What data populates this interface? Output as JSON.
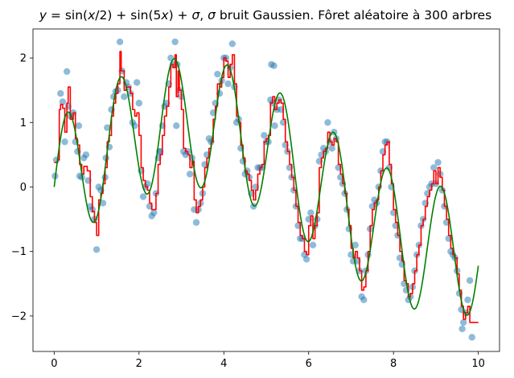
{
  "chart_data": {
    "type": "scatter",
    "title": "y = sin(x/2) + sin(5x) + σ, σ bruit Gaussien. Fôret aléatoire à  300 arbres",
    "title_parts": {
      "y": "y",
      "eq": " = sin(",
      "x1": "x",
      "half": "/2) + sin(5",
      "x2": "x",
      "plus": ") + ",
      "s1": "σ",
      "comma": ", ",
      "s2": "σ",
      "rest": " bruit Gaussien. Fôret aléatoire à  300 arbres"
    },
    "xlim": [
      -0.5,
      10.5
    ],
    "ylim": [
      -2.55,
      2.45
    ],
    "xticks": [
      0,
      2,
      4,
      6,
      8,
      10
    ],
    "yticks": [
      -2,
      -1,
      0,
      1,
      2
    ],
    "xtick_labels": [
      "0",
      "2",
      "4",
      "6",
      "8",
      "10"
    ],
    "ytick_labels": [
      "−2",
      "−1",
      "0",
      "1",
      "2"
    ],
    "colors": {
      "points": "#1f77b4",
      "forest": "#ff0000",
      "true_function": "#008000"
    },
    "points": [
      [
        0.02,
        0.17
      ],
      [
        0.05,
        0.42
      ],
      [
        0.15,
        1.45
      ],
      [
        0.2,
        1.32
      ],
      [
        0.25,
        0.7
      ],
      [
        0.3,
        1.79
      ],
      [
        0.33,
        1.25
      ],
      [
        0.38,
        1.1
      ],
      [
        0.45,
        1.15
      ],
      [
        0.5,
        0.7
      ],
      [
        0.55,
        0.55
      ],
      [
        0.58,
        0.95
      ],
      [
        0.6,
        0.17
      ],
      [
        0.65,
        0.15
      ],
      [
        0.7,
        0.45
      ],
      [
        0.75,
        0.5
      ],
      [
        0.8,
        0.1
      ],
      [
        0.85,
        -0.3
      ],
      [
        0.9,
        -0.35
      ],
      [
        0.95,
        -0.5
      ],
      [
        1.0,
        -0.97
      ],
      [
        1.05,
        0.0
      ],
      [
        1.1,
        -0.05
      ],
      [
        1.15,
        -0.25
      ],
      [
        1.2,
        0.15
      ],
      [
        1.22,
        0.45
      ],
      [
        1.25,
        0.92
      ],
      [
        1.3,
        0.62
      ],
      [
        1.35,
        1.2
      ],
      [
        1.4,
        1.4
      ],
      [
        1.45,
        1.48
      ],
      [
        1.5,
        1.5
      ],
      [
        1.55,
        2.25
      ],
      [
        1.6,
        1.8
      ],
      [
        1.65,
        1.4
      ],
      [
        1.7,
        1.62
      ],
      [
        1.75,
        1.55
      ],
      [
        1.8,
        1.45
      ],
      [
        1.85,
        1.0
      ],
      [
        1.9,
        0.95
      ],
      [
        1.95,
        1.62
      ],
      [
        2.0,
        1.3
      ],
      [
        2.05,
        0.25
      ],
      [
        2.1,
        -0.15
      ],
      [
        2.15,
        0.0
      ],
      [
        2.2,
        0.05
      ],
      [
        2.25,
        -0.3
      ],
      [
        2.3,
        -0.45
      ],
      [
        2.35,
        -0.4
      ],
      [
        2.4,
        -0.1
      ],
      [
        2.45,
        0.45
      ],
      [
        2.48,
        0.55
      ],
      [
        2.5,
        0.55
      ],
      [
        2.55,
        0.95
      ],
      [
        2.6,
        1.25
      ],
      [
        2.65,
        1.3
      ],
      [
        2.7,
        1.6
      ],
      [
        2.75,
        2.0
      ],
      [
        2.8,
        1.9
      ],
      [
        2.85,
        2.25
      ],
      [
        2.88,
        0.95
      ],
      [
        2.9,
        1.9
      ],
      [
        2.95,
        1.5
      ],
      [
        3.0,
        1.4
      ],
      [
        3.05,
        0.55
      ],
      [
        3.1,
        0.5
      ],
      [
        3.15,
        0.55
      ],
      [
        3.2,
        0.2
      ],
      [
        3.25,
        0.45
      ],
      [
        3.3,
        -0.35
      ],
      [
        3.35,
        -0.55
      ],
      [
        3.4,
        -0.35
      ],
      [
        3.45,
        -0.25
      ],
      [
        3.5,
        -0.1
      ],
      [
        3.55,
        0.35
      ],
      [
        3.6,
        0.5
      ],
      [
        3.65,
        0.75
      ],
      [
        3.7,
        0.7
      ],
      [
        3.75,
        1.15
      ],
      [
        3.8,
        1.3
      ],
      [
        3.85,
        1.75
      ],
      [
        3.9,
        1.45
      ],
      [
        3.95,
        1.65
      ],
      [
        4.0,
        2.0
      ],
      [
        4.05,
        2.0
      ],
      [
        4.1,
        1.6
      ],
      [
        4.15,
        1.85
      ],
      [
        4.2,
        2.22
      ],
      [
        4.25,
        1.55
      ],
      [
        4.3,
        1.0
      ],
      [
        4.35,
        1.05
      ],
      [
        4.4,
        0.6
      ],
      [
        4.45,
        0.4
      ],
      [
        4.5,
        0.2
      ],
      [
        4.55,
        0.25
      ],
      [
        4.6,
        0.15
      ],
      [
        4.65,
        -0.1
      ],
      [
        4.7,
        -0.3
      ],
      [
        4.75,
        0.0
      ],
      [
        4.8,
        0.3
      ],
      [
        4.85,
        0.3
      ],
      [
        4.9,
        0.3
      ],
      [
        4.95,
        0.8
      ],
      [
        5.0,
        0.7
      ],
      [
        5.05,
        0.7
      ],
      [
        5.1,
        1.35
      ],
      [
        5.12,
        1.9
      ],
      [
        5.15,
        1.3
      ],
      [
        5.18,
        1.88
      ],
      [
        5.2,
        0.95
      ],
      [
        5.25,
        1.2
      ],
      [
        5.3,
        1.35
      ],
      [
        5.35,
        1.2
      ],
      [
        5.4,
        1.0
      ],
      [
        5.45,
        0.65
      ],
      [
        5.5,
        0.55
      ],
      [
        5.55,
        0.3
      ],
      [
        5.6,
        0.15
      ],
      [
        5.65,
        -0.05
      ],
      [
        5.7,
        -0.3
      ],
      [
        5.75,
        -0.6
      ],
      [
        5.8,
        -0.8
      ],
      [
        5.85,
        -0.8
      ],
      [
        5.9,
        -1.05
      ],
      [
        5.95,
        -1.12
      ],
      [
        6.0,
        -0.5
      ],
      [
        6.05,
        -0.4
      ],
      [
        6.1,
        -0.9
      ],
      [
        6.15,
        -0.6
      ],
      [
        6.2,
        -0.5
      ],
      [
        6.25,
        0.4
      ],
      [
        6.3,
        0.5
      ],
      [
        6.35,
        0.6
      ],
      [
        6.4,
        0.55
      ],
      [
        6.45,
        1.0
      ],
      [
        6.5,
        0.7
      ],
      [
        6.55,
        0.6
      ],
      [
        6.6,
        0.85
      ],
      [
        6.65,
        0.75
      ],
      [
        6.7,
        0.3
      ],
      [
        6.75,
        0.15
      ],
      [
        6.8,
        0.05
      ],
      [
        6.85,
        -0.1
      ],
      [
        6.9,
        -0.35
      ],
      [
        6.95,
        -0.65
      ],
      [
        7.0,
        -1.05
      ],
      [
        7.05,
        -1.15
      ],
      [
        7.1,
        -0.9
      ],
      [
        7.15,
        -1.15
      ],
      [
        7.2,
        -1.3
      ],
      [
        7.25,
        -1.7
      ],
      [
        7.3,
        -1.75
      ],
      [
        7.35,
        -1.3
      ],
      [
        7.4,
        -1.05
      ],
      [
        7.45,
        -0.65
      ],
      [
        7.5,
        -0.3
      ],
      [
        7.55,
        -0.2
      ],
      [
        7.6,
        -0.25
      ],
      [
        7.65,
        0.0
      ],
      [
        7.7,
        0.25
      ],
      [
        7.75,
        0.55
      ],
      [
        7.8,
        0.7
      ],
      [
        7.85,
        0.7
      ],
      [
        7.9,
        0.3
      ],
      [
        7.95,
        0.0
      ],
      [
        8.0,
        -0.4
      ],
      [
        8.05,
        -0.6
      ],
      [
        8.1,
        -0.75
      ],
      [
        8.15,
        -1.1
      ],
      [
        8.2,
        -1.2
      ],
      [
        8.25,
        -1.5
      ],
      [
        8.3,
        -1.6
      ],
      [
        8.35,
        -1.75
      ],
      [
        8.4,
        -1.7
      ],
      [
        8.45,
        -1.55
      ],
      [
        8.5,
        -1.3
      ],
      [
        8.55,
        -1.05
      ],
      [
        8.6,
        -0.9
      ],
      [
        8.65,
        -0.6
      ],
      [
        8.7,
        -0.5
      ],
      [
        8.75,
        -0.25
      ],
      [
        8.8,
        -0.1
      ],
      [
        8.85,
        0.0
      ],
      [
        8.9,
        0.05
      ],
      [
        8.95,
        0.3
      ],
      [
        9.0,
        0.05
      ],
      [
        9.05,
        0.38
      ],
      [
        9.1,
        0.2
      ],
      [
        9.15,
        -0.05
      ],
      [
        9.2,
        -0.3
      ],
      [
        9.25,
        -0.55
      ],
      [
        9.3,
        -0.8
      ],
      [
        9.35,
        -1.0
      ],
      [
        9.4,
        -1.05
      ],
      [
        9.45,
        -1.1
      ],
      [
        9.5,
        -1.3
      ],
      [
        9.55,
        -1.65
      ],
      [
        9.6,
        -1.9
      ],
      [
        9.62,
        -2.2
      ],
      [
        9.65,
        -2.1
      ],
      [
        9.7,
        -1.95
      ],
      [
        9.75,
        -1.75
      ],
      [
        9.8,
        -1.45
      ],
      [
        9.85,
        -2.33
      ]
    ],
    "forest_line": [
      [
        0.0,
        0.38
      ],
      [
        0.08,
        0.42
      ],
      [
        0.12,
        1.2
      ],
      [
        0.15,
        1.28
      ],
      [
        0.2,
        1.22
      ],
      [
        0.25,
        0.85
      ],
      [
        0.3,
        1.3
      ],
      [
        0.33,
        1.55
      ],
      [
        0.38,
        1.05
      ],
      [
        0.45,
        1.15
      ],
      [
        0.5,
        0.75
      ],
      [
        0.55,
        0.65
      ],
      [
        0.6,
        0.35
      ],
      [
        0.65,
        0.2
      ],
      [
        0.7,
        0.32
      ],
      [
        0.78,
        0.25
      ],
      [
        0.85,
        -0.15
      ],
      [
        0.9,
        -0.38
      ],
      [
        0.95,
        -0.55
      ],
      [
        1.0,
        -0.75
      ],
      [
        1.05,
        -0.2
      ],
      [
        1.1,
        -0.1
      ],
      [
        1.15,
        0.05
      ],
      [
        1.2,
        0.3
      ],
      [
        1.25,
        0.7
      ],
      [
        1.3,
        0.8
      ],
      [
        1.35,
        1.1
      ],
      [
        1.4,
        1.3
      ],
      [
        1.45,
        1.45
      ],
      [
        1.5,
        1.6
      ],
      [
        1.55,
        2.1
      ],
      [
        1.58,
        1.8
      ],
      [
        1.65,
        1.5
      ],
      [
        1.7,
        1.55
      ],
      [
        1.8,
        1.45
      ],
      [
        1.85,
        1.2
      ],
      [
        1.9,
        1.1
      ],
      [
        1.95,
        1.15
      ],
      [
        2.0,
        0.8
      ],
      [
        2.05,
        0.3
      ],
      [
        2.1,
        0.1
      ],
      [
        2.15,
        0.0
      ],
      [
        2.2,
        -0.05
      ],
      [
        2.25,
        -0.25
      ],
      [
        2.3,
        -0.35
      ],
      [
        2.4,
        -0.1
      ],
      [
        2.45,
        0.35
      ],
      [
        2.5,
        0.5
      ],
      [
        2.55,
        0.8
      ],
      [
        2.6,
        1.1
      ],
      [
        2.65,
        1.25
      ],
      [
        2.7,
        1.55
      ],
      [
        2.75,
        1.9
      ],
      [
        2.8,
        1.85
      ],
      [
        2.85,
        2.05
      ],
      [
        2.88,
        1.4
      ],
      [
        2.92,
        1.8
      ],
      [
        2.95,
        1.5
      ],
      [
        3.0,
        1.2
      ],
      [
        3.05,
        0.6
      ],
      [
        3.1,
        0.55
      ],
      [
        3.15,
        0.5
      ],
      [
        3.2,
        0.3
      ],
      [
        3.25,
        0.4
      ],
      [
        3.3,
        -0.2
      ],
      [
        3.35,
        -0.4
      ],
      [
        3.4,
        -0.3
      ],
      [
        3.45,
        -0.2
      ],
      [
        3.5,
        0.0
      ],
      [
        3.55,
        0.3
      ],
      [
        3.6,
        0.45
      ],
      [
        3.65,
        0.6
      ],
      [
        3.7,
        0.7
      ],
      [
        3.75,
        1.05
      ],
      [
        3.8,
        1.25
      ],
      [
        3.85,
        1.6
      ],
      [
        3.9,
        1.55
      ],
      [
        3.95,
        1.7
      ],
      [
        4.0,
        2.0
      ],
      [
        4.05,
        1.95
      ],
      [
        4.1,
        1.7
      ],
      [
        4.15,
        1.9
      ],
      [
        4.2,
        2.05
      ],
      [
        4.25,
        1.6
      ],
      [
        4.3,
        1.1
      ],
      [
        4.35,
        1.0
      ],
      [
        4.4,
        0.65
      ],
      [
        4.45,
        0.45
      ],
      [
        4.5,
        0.25
      ],
      [
        4.55,
        0.2
      ],
      [
        4.6,
        0.1
      ],
      [
        4.65,
        -0.05
      ],
      [
        4.7,
        -0.2
      ],
      [
        4.75,
        -0.05
      ],
      [
        4.8,
        0.2
      ],
      [
        4.85,
        0.3
      ],
      [
        4.9,
        0.35
      ],
      [
        4.95,
        0.7
      ],
      [
        5.0,
        0.75
      ],
      [
        5.05,
        0.8
      ],
      [
        5.1,
        1.3
      ],
      [
        5.15,
        1.4
      ],
      [
        5.2,
        1.2
      ],
      [
        5.25,
        1.3
      ],
      [
        5.3,
        1.35
      ],
      [
        5.35,
        1.3
      ],
      [
        5.4,
        1.05
      ],
      [
        5.45,
        0.7
      ],
      [
        5.5,
        0.55
      ],
      [
        5.55,
        0.35
      ],
      [
        5.6,
        0.15
      ],
      [
        5.65,
        -0.05
      ],
      [
        5.7,
        -0.3
      ],
      [
        5.75,
        -0.55
      ],
      [
        5.8,
        -0.75
      ],
      [
        5.85,
        -0.8
      ],
      [
        5.9,
        -1.0
      ],
      [
        5.95,
        -1.05
      ],
      [
        6.0,
        -0.6
      ],
      [
        6.05,
        -0.45
      ],
      [
        6.1,
        -0.8
      ],
      [
        6.15,
        -0.6
      ],
      [
        6.2,
        -0.4
      ],
      [
        6.25,
        0.3
      ],
      [
        6.3,
        0.45
      ],
      [
        6.35,
        0.55
      ],
      [
        6.4,
        0.6
      ],
      [
        6.45,
        0.85
      ],
      [
        6.5,
        0.7
      ],
      [
        6.55,
        0.65
      ],
      [
        6.6,
        0.75
      ],
      [
        6.65,
        0.7
      ],
      [
        6.7,
        0.35
      ],
      [
        6.75,
        0.2
      ],
      [
        6.8,
        0.05
      ],
      [
        6.85,
        -0.1
      ],
      [
        6.9,
        -0.35
      ],
      [
        6.95,
        -0.6
      ],
      [
        7.0,
        -0.95
      ],
      [
        7.05,
        -1.1
      ],
      [
        7.1,
        -1.0
      ],
      [
        7.15,
        -1.1
      ],
      [
        7.2,
        -1.3
      ],
      [
        7.25,
        -1.6
      ],
      [
        7.3,
        -1.55
      ],
      [
        7.35,
        -1.3
      ],
      [
        7.4,
        -1.0
      ],
      [
        7.45,
        -0.6
      ],
      [
        7.5,
        -0.35
      ],
      [
        7.55,
        -0.25
      ],
      [
        7.6,
        -0.2
      ],
      [
        7.65,
        0.0
      ],
      [
        7.7,
        0.25
      ],
      [
        7.75,
        0.5
      ],
      [
        7.8,
        0.65
      ],
      [
        7.85,
        0.7
      ],
      [
        7.9,
        0.35
      ],
      [
        7.95,
        0.05
      ],
      [
        8.0,
        -0.35
      ],
      [
        8.05,
        -0.55
      ],
      [
        8.1,
        -0.75
      ],
      [
        8.15,
        -1.0
      ],
      [
        8.2,
        -1.15
      ],
      [
        8.25,
        -1.45
      ],
      [
        8.3,
        -1.5
      ],
      [
        8.35,
        -1.7
      ],
      [
        8.4,
        -1.65
      ],
      [
        8.45,
        -1.5
      ],
      [
        8.5,
        -1.3
      ],
      [
        8.55,
        -1.05
      ],
      [
        8.6,
        -0.9
      ],
      [
        8.65,
        -0.6
      ],
      [
        8.7,
        -0.5
      ],
      [
        8.75,
        -0.3
      ],
      [
        8.8,
        -0.15
      ],
      [
        8.85,
        -0.05
      ],
      [
        8.9,
        0.05
      ],
      [
        8.95,
        0.25
      ],
      [
        9.0,
        0.05
      ],
      [
        9.05,
        0.3
      ],
      [
        9.1,
        0.15
      ],
      [
        9.15,
        -0.05
      ],
      [
        9.2,
        -0.3
      ],
      [
        9.25,
        -0.5
      ],
      [
        9.3,
        -0.75
      ],
      [
        9.35,
        -0.95
      ],
      [
        9.4,
        -1.05
      ],
      [
        9.45,
        -1.1
      ],
      [
        9.5,
        -1.35
      ],
      [
        9.55,
        -1.6
      ],
      [
        9.6,
        -1.85
      ],
      [
        9.65,
        -2.05
      ],
      [
        9.7,
        -1.95
      ],
      [
        9.75,
        -1.85
      ],
      [
        9.8,
        -2.1
      ],
      [
        10.0,
        -2.1
      ]
    ],
    "true_function": {
      "expression": "sin(x/2) + sin(5x)",
      "x_range": [
        0,
        10
      ]
    }
  }
}
